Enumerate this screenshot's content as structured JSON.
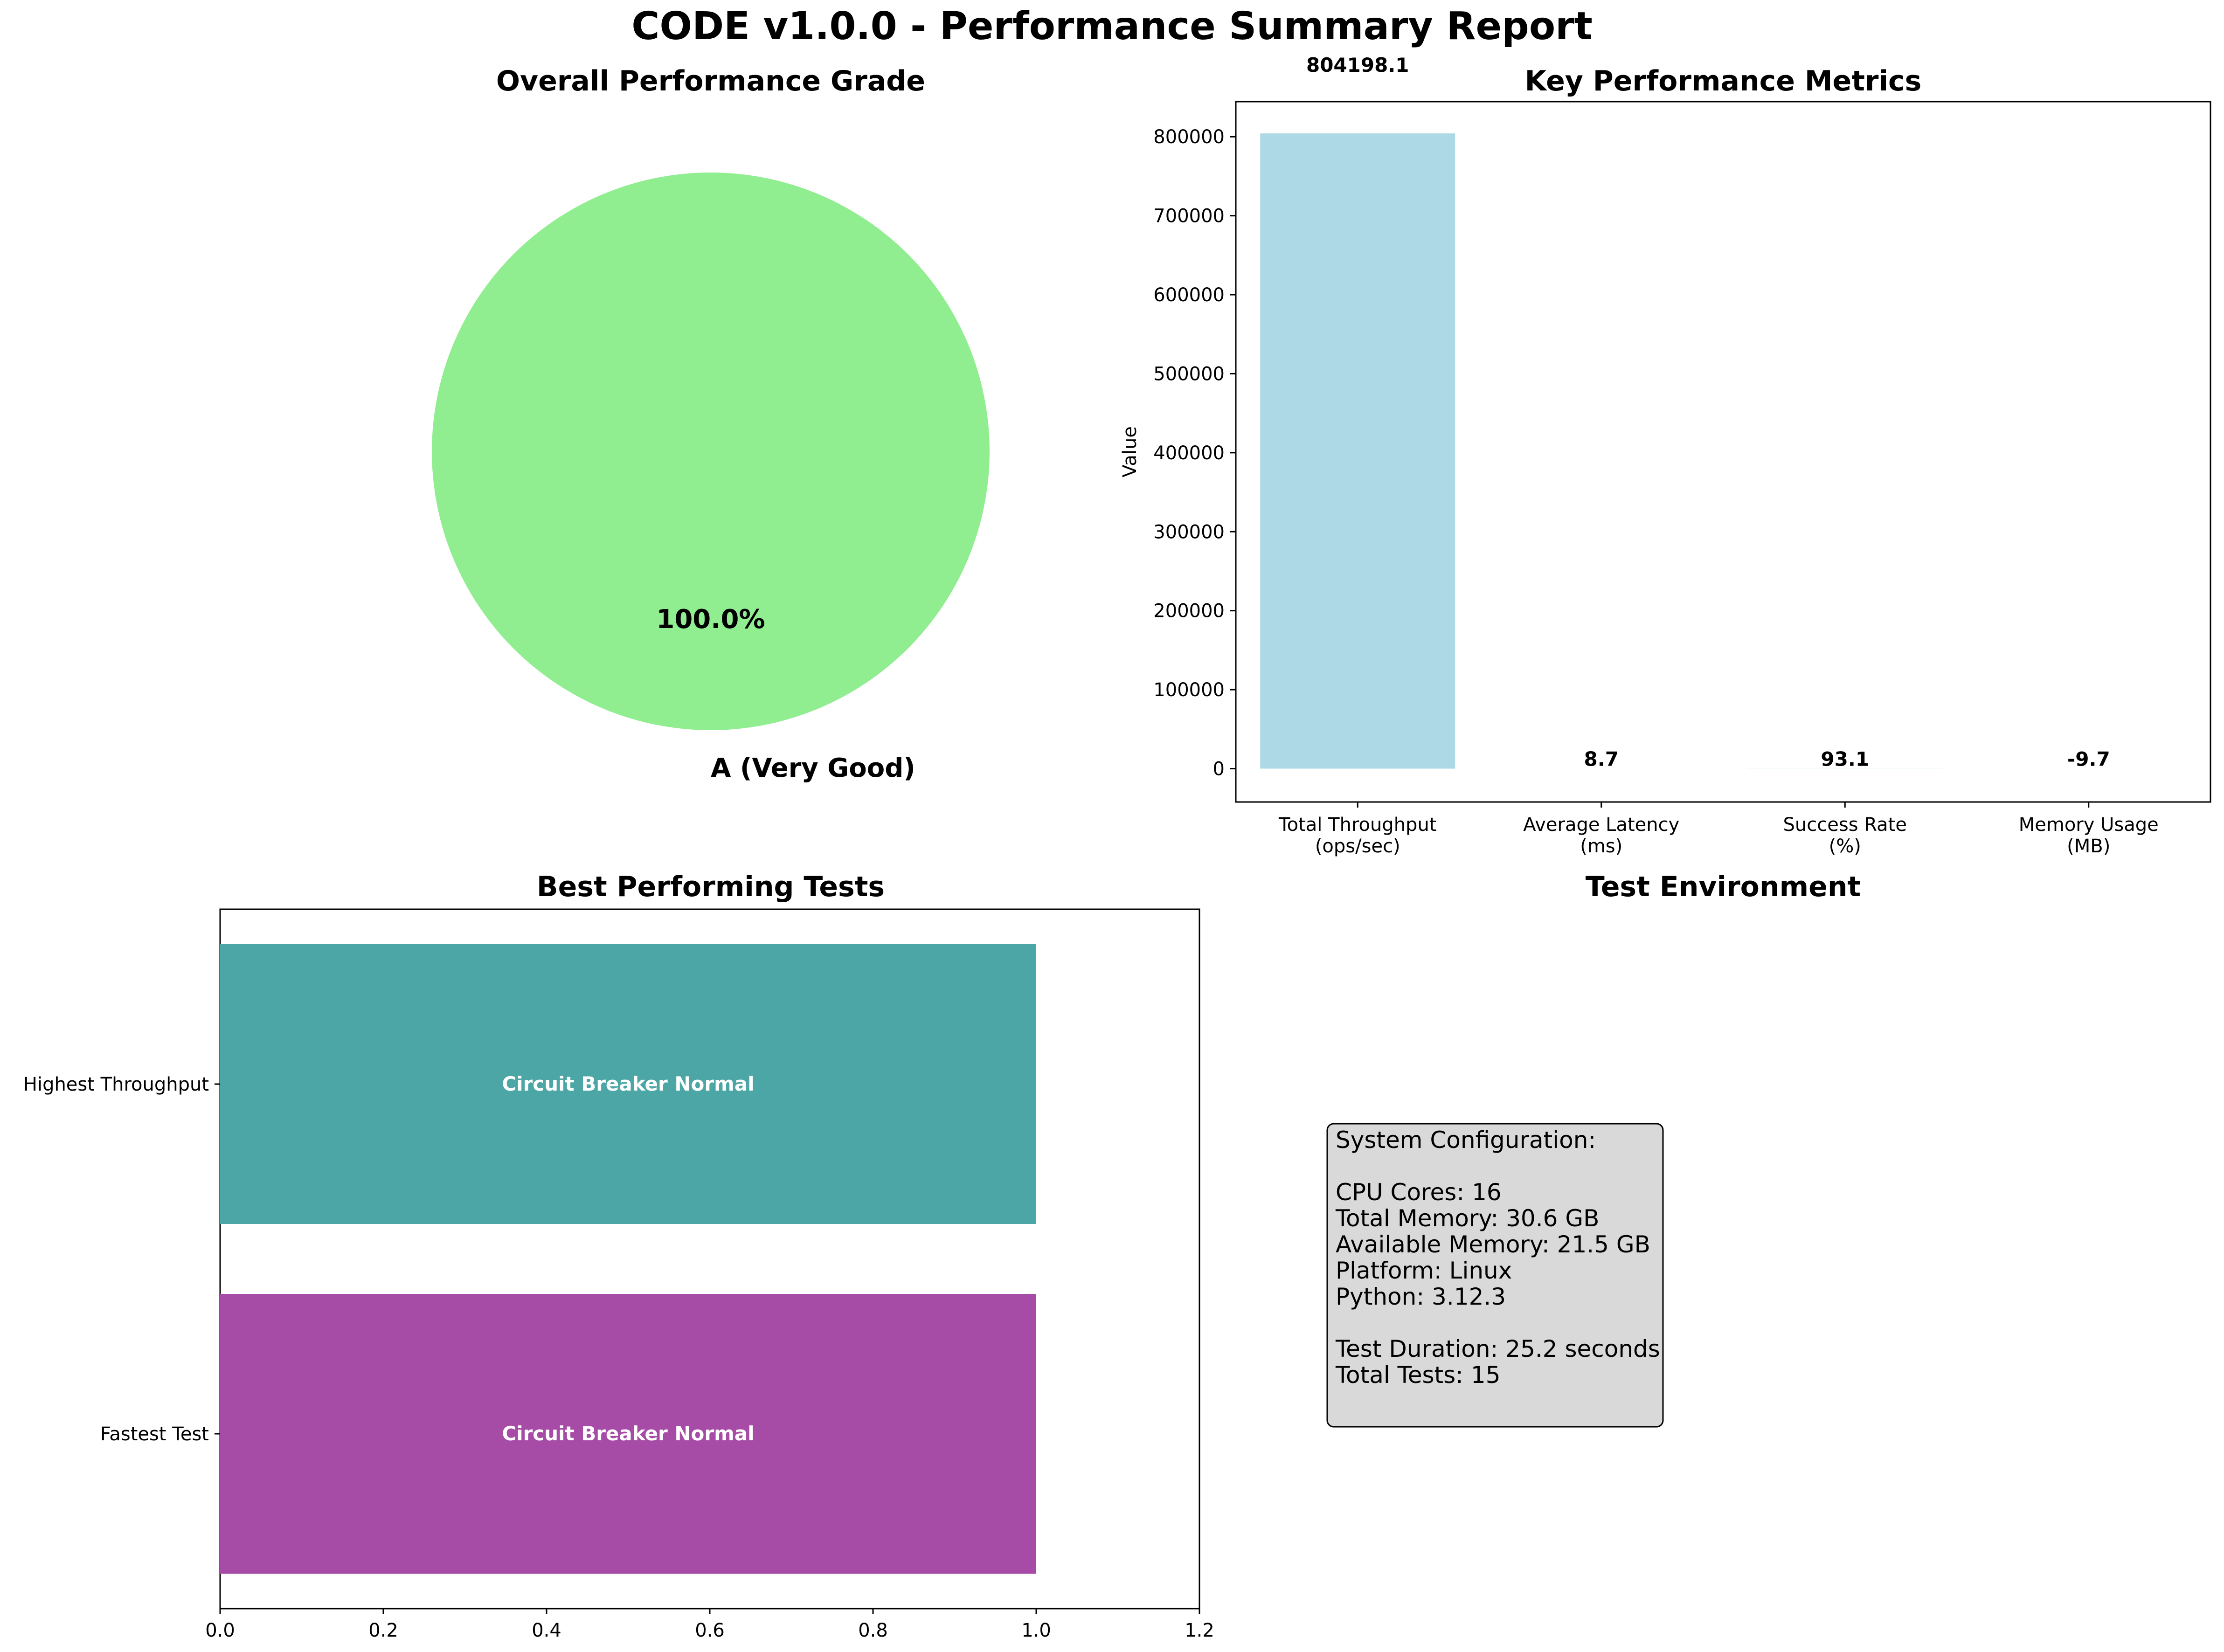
{
  "title": "CODE v1.0.0 - Performance Summary Report",
  "chart_data": [
    {
      "type": "pie",
      "title": "Overall Performance Grade",
      "slices": [
        {
          "label": "A (Very Good)",
          "value": 100.0,
          "pct_label": "100.0%",
          "color": "#90ee90"
        }
      ]
    },
    {
      "type": "bar",
      "title": "Key Performance Metrics",
      "ylabel": "Value",
      "categories": [
        [
          "Total Throughput",
          "(ops/sec)"
        ],
        [
          "Average Latency",
          "(ms)"
        ],
        [
          "Success Rate",
          "(%)"
        ],
        [
          "Memory Usage",
          "(MB)"
        ]
      ],
      "values": [
        804198.1,
        8.7,
        93.1,
        -9.7
      ],
      "value_labels": [
        "804198.1",
        "8.7",
        "93.1",
        "-9.7"
      ],
      "ylim": [
        -42210,
        844408
      ],
      "yticks": [
        0,
        100000,
        200000,
        300000,
        400000,
        500000,
        600000,
        700000,
        800000
      ],
      "color": "#add8e6"
    },
    {
      "type": "bar",
      "orientation": "horizontal",
      "title": "Best Performing Tests",
      "categories": [
        "Highest Throughput",
        "Fastest Test"
      ],
      "values": [
        1,
        1
      ],
      "bar_labels": [
        "Circuit Breaker Normal",
        "Circuit Breaker Normal"
      ],
      "colors": [
        "#4ca6a6",
        "#a64ca6"
      ],
      "xlim": [
        0,
        1.2
      ],
      "xticks": [
        0.0,
        0.2,
        0.4,
        0.6,
        0.8,
        1.0,
        1.2
      ]
    }
  ],
  "environment": {
    "title": "Test Environment",
    "lines": [
      "System Configuration:",
      "",
      "CPU Cores: 16",
      "Total Memory: 30.6 GB",
      "Available Memory: 21.5 GB",
      "Platform: Linux",
      "Python: 3.12.3",
      "",
      "Test Duration: 25.2 seconds",
      "Total Tests: 15"
    ]
  }
}
